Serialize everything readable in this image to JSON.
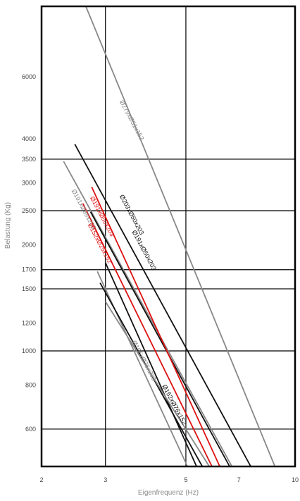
{
  "chart_data": {
    "type": "line",
    "xlabel": "Eigenfrequenz (Hz)",
    "ylabel": "Belastung (Kg)",
    "x_scale": "log",
    "y_scale": "log",
    "xlim": [
      2,
      10
    ],
    "ylim": [
      470,
      9500
    ],
    "x_ticks": [
      {
        "value": 2,
        "label": "2"
      },
      {
        "value": 3,
        "label": "3"
      },
      {
        "value": 5,
        "label": "5"
      },
      {
        "value": 7,
        "label": "7"
      },
      {
        "value": 10,
        "label": "10"
      }
    ],
    "x_grid": [
      3,
      5
    ],
    "y_ticks": [
      {
        "value": 600,
        "label": "600"
      },
      {
        "value": 800,
        "label": "800"
      },
      {
        "value": 1000,
        "label": "1000"
      },
      {
        "value": 1200,
        "label": "1200"
      },
      {
        "value": 1500,
        "label": "1500"
      },
      {
        "value": 1700,
        "label": "1700"
      },
      {
        "value": 2000,
        "label": "2000"
      },
      {
        "value": 2500,
        "label": "2500"
      },
      {
        "value": 3000,
        "label": "3000"
      },
      {
        "value": 3500,
        "label": "3500"
      },
      {
        "value": 4000,
        "label": "4000"
      },
      {
        "value": 6000,
        "label": "6000"
      }
    ],
    "y_grid": [
      600,
      1000,
      1500,
      1700,
      2500,
      3500
    ],
    "series": [
      {
        "name": "Ø279xØ51x152",
        "color": "#888888",
        "points": [
          [
            2.65,
            9500
          ],
          [
            8.8,
            470
          ]
        ],
        "label_at": [
          3.28,
          5100
        ],
        "label_angle": 62
      },
      {
        "name": "Ø203xØ50x203",
        "color": "#111111",
        "points": [
          [
            2.47,
            3860
          ],
          [
            7.55,
            470
          ]
        ],
        "label_at": [
          3.28,
          2750
        ],
        "label_angle": 62
      },
      {
        "name": "Ø191xØ89x203",
        "color": "#888888",
        "points": [
          [
            2.3,
            3450
          ],
          [
            6.7,
            470
          ]
        ],
        "label_at": [
          2.42,
          2850
        ],
        "label_angle": 62
      },
      {
        "name": "Ø191xØ50x203",
        "color": "#111111",
        "points": [
          [
            2.73,
            2480
          ],
          [
            6.6,
            470
          ]
        ],
        "label_at": [
          3.55,
          2180
        ],
        "label_angle": 62
      },
      {
        "name": "Ø191xØ50x203",
        "color": "#dd1111",
        "points": [
          [
            2.75,
            2920
          ],
          [
            6.2,
            470
          ]
        ],
        "label_at": [
          2.72,
          2720
        ],
        "label_angle": 62
      },
      {
        "name": "Ø152xØ25x152",
        "color": "#dd1111",
        "points": [
          [
            2.6,
            2620
          ],
          [
            5.9,
            470
          ]
        ],
        "label_at": [
          2.68,
          2280
        ],
        "label_angle": 62
      },
      {
        "name": "Ø165xØ76x203",
        "color": "#888888",
        "points": [
          [
            2.85,
            1680
          ],
          [
            5.05,
            470
          ]
        ],
        "label_at": [
          3.55,
          1060
        ],
        "label_angle": 62
      },
      {
        "name": "Ø152xØ76x152",
        "color": "#111111",
        "points": [
          [
            3.0,
            1780
          ],
          [
            5.35,
            470
          ]
        ],
        "label_at": [
          4.3,
          795
        ],
        "label_angle": 62
      },
      {
        "name": "",
        "color": "#111111",
        "points": [
          [
            2.9,
            1560
          ],
          [
            5.55,
            470
          ]
        ]
      },
      {
        "name": "",
        "color": "#888888",
        "points": [
          [
            3.0,
            1380
          ],
          [
            5.8,
            470
          ]
        ]
      }
    ]
  }
}
